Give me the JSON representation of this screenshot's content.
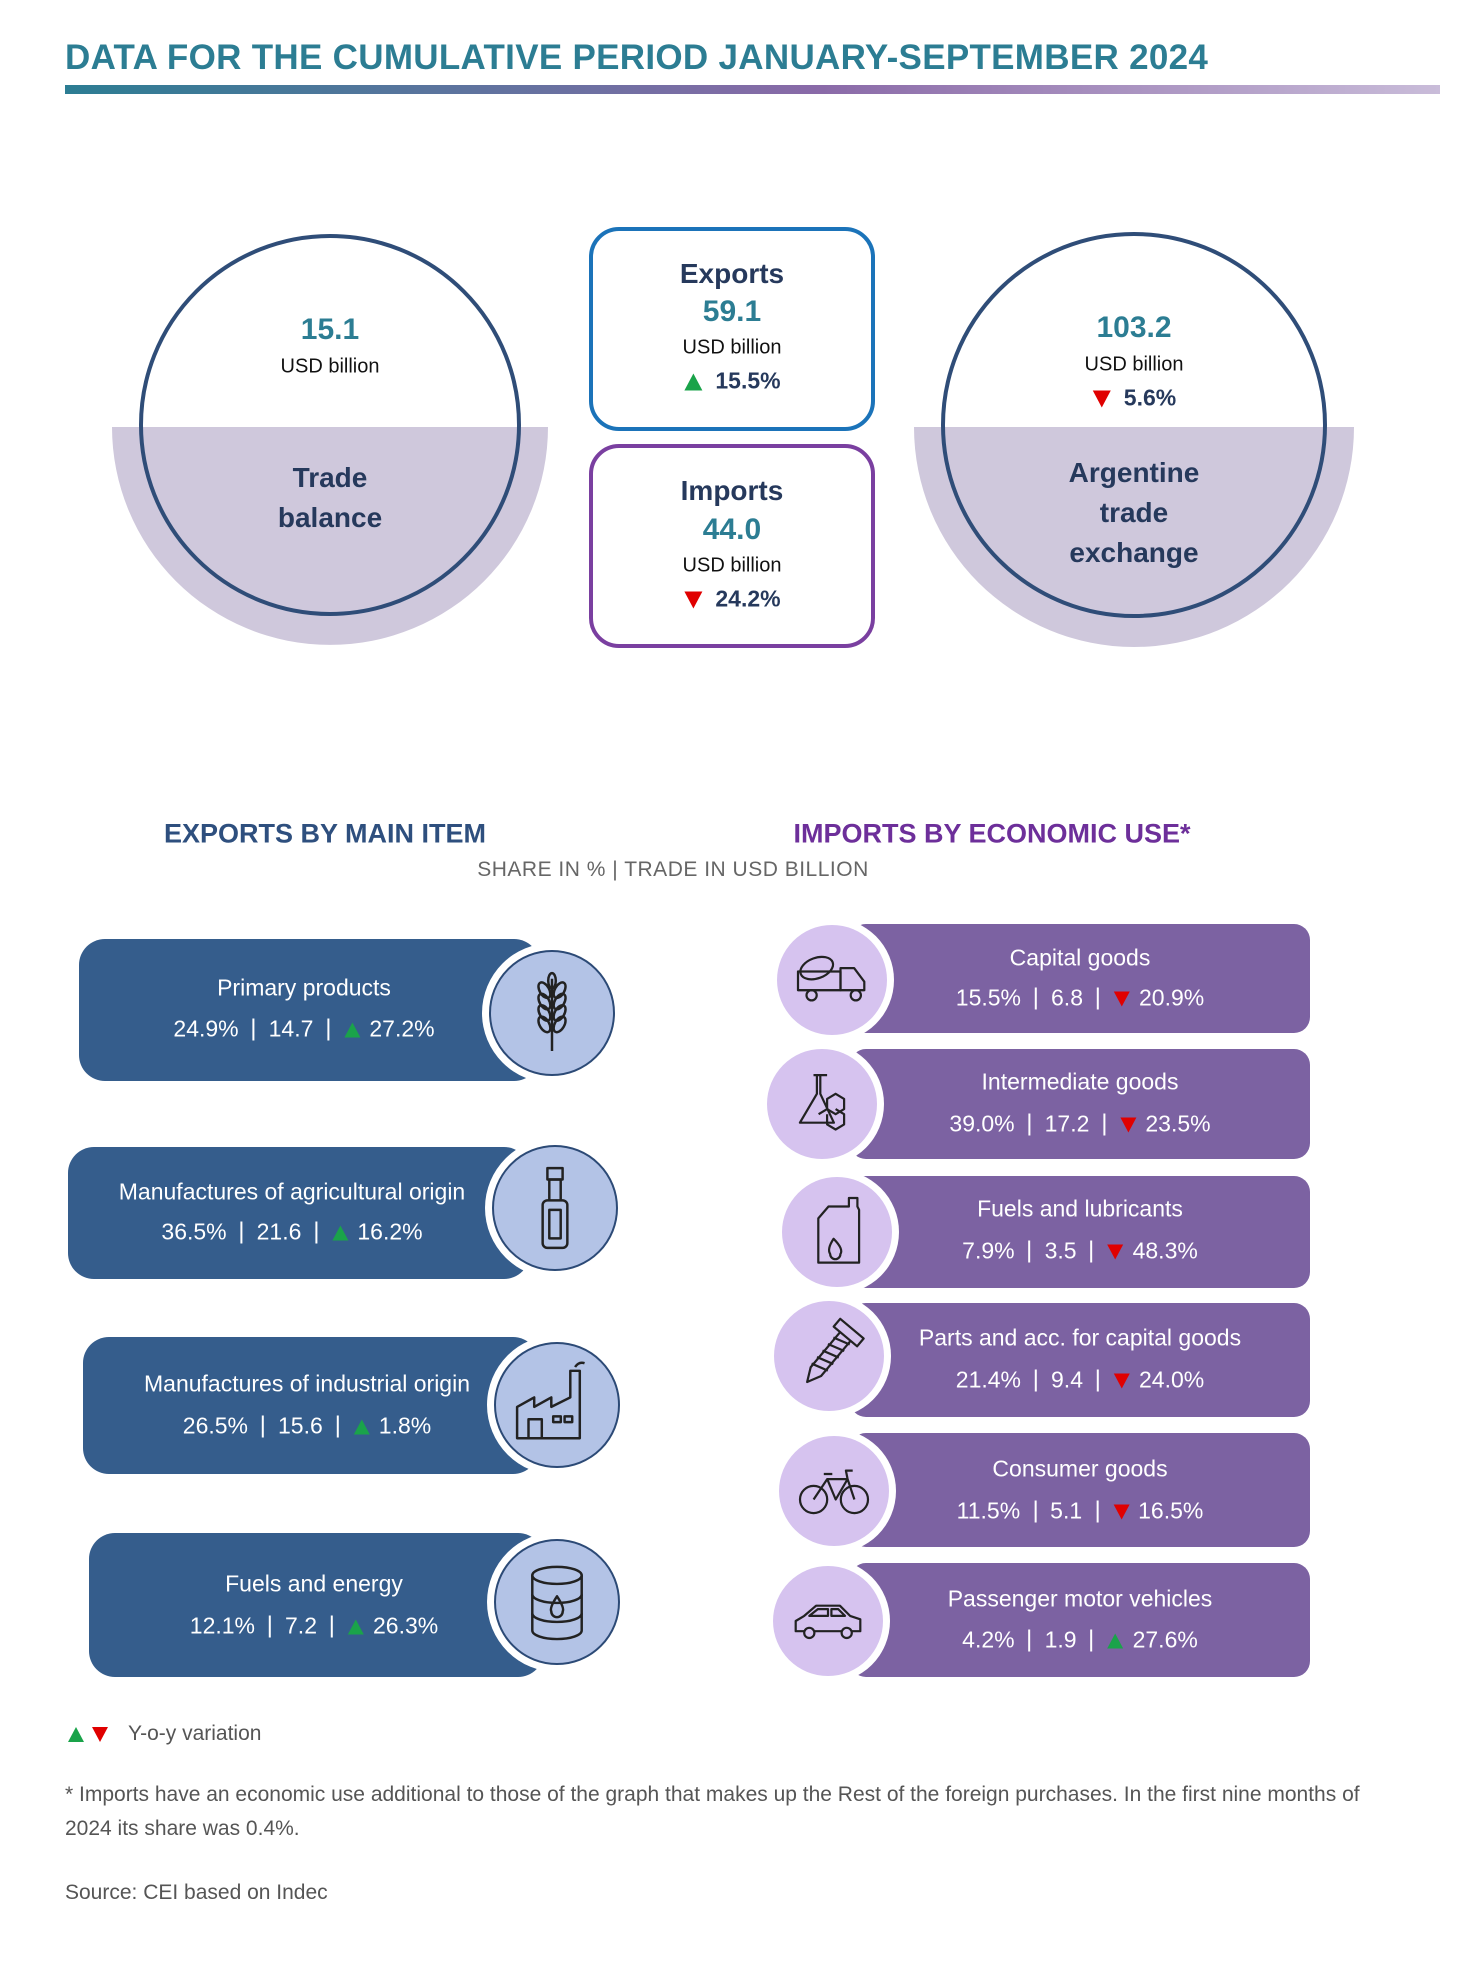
{
  "header": {
    "title": "DATA FOR THE CUMULATIVE PERIOD JANUARY-SEPTEMBER 2024"
  },
  "summary": {
    "trade_balance": {
      "value": "15.1",
      "unit": "USD billion",
      "label": "Trade balance"
    },
    "exports": {
      "label": "Exports",
      "value": "59.1",
      "unit": "USD billion",
      "change": "15.5%",
      "direction": "up"
    },
    "imports": {
      "label": "Imports",
      "value": "44.0",
      "unit": "USD billion",
      "change": "24.2%",
      "direction": "down"
    },
    "trade_exchange": {
      "value": "103.2",
      "unit": "USD billion",
      "change": "5.6%",
      "direction": "down",
      "label": "Argentine trade exchange"
    }
  },
  "exports_section": {
    "title": "EXPORTS BY MAIN ITEM",
    "items": [
      {
        "name": "Primary products",
        "share": "24.9%",
        "trade": "14.7",
        "change": "27.2%",
        "direction": "up"
      },
      {
        "name": "Manufactures of agricultural origin",
        "share": "36.5%",
        "trade": "21.6",
        "change": "16.2%",
        "direction": "up"
      },
      {
        "name": "Manufactures of industrial origin",
        "share": "26.5%",
        "trade": "15.6",
        "change": "1.8%",
        "direction": "up"
      },
      {
        "name": "Fuels and energy",
        "share": "12.1%",
        "trade": "7.2",
        "change": "26.3%",
        "direction": "up"
      }
    ]
  },
  "imports_section": {
    "title": "IMPORTS BY ECONOMIC USE*",
    "items": [
      {
        "name": "Capital goods",
        "share": "15.5%",
        "trade": "6.8",
        "change": "20.9%",
        "direction": "down"
      },
      {
        "name": "Intermediate goods",
        "share": "39.0%",
        "trade": "17.2",
        "change": "23.5%",
        "direction": "down"
      },
      {
        "name": "Fuels and lubricants",
        "share": "7.9%",
        "trade": "3.5",
        "change": "48.3%",
        "direction": "down"
      },
      {
        "name": "Parts and acc. for capital goods",
        "share": "21.4%",
        "trade": "9.4",
        "change": "24.0%",
        "direction": "down"
      },
      {
        "name": "Consumer goods",
        "share": "11.5%",
        "trade": "5.1",
        "change": "16.5%",
        "direction": "down"
      },
      {
        "name": "Passenger motor vehicles",
        "share": "4.2%",
        "trade": "1.9",
        "change": "27.6%",
        "direction": "up"
      }
    ]
  },
  "subtitle": "SHARE IN % | TRADE IN USD BILLION",
  "legend": {
    "label": "Y-o-y variation"
  },
  "footnote": "* Imports have an economic use additional to those of the graph that makes up the Rest of the foreign purchases. In the first nine months of 2024 its share was 0.4%.",
  "source": "Source: CEI based on Indec"
}
